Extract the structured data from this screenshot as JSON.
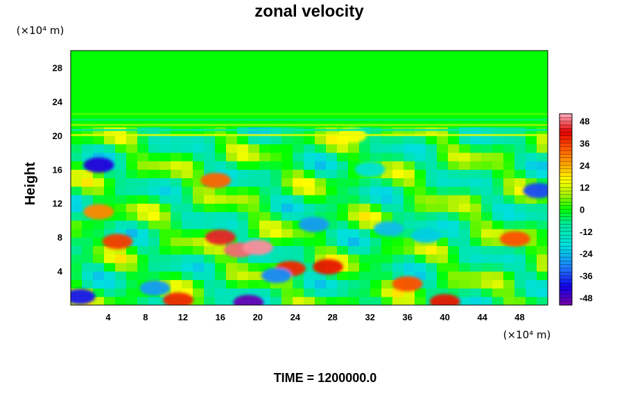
{
  "chart_data": {
    "type": "heatmap",
    "title": "zonal velocity",
    "ylabel": "Height",
    "x_unit": "(×10⁴ m)",
    "y_unit": "(×10⁴ m)",
    "x_ticks": [
      4,
      8,
      12,
      16,
      20,
      24,
      28,
      32,
      36,
      40,
      44,
      48
    ],
    "y_ticks": [
      4,
      8,
      12,
      16,
      20,
      24,
      28
    ],
    "xlim": [
      0,
      51
    ],
    "ylim": [
      0,
      30
    ],
    "colorbar": {
      "ticks": [
        48,
        36,
        24,
        12,
        0,
        -12,
        -24,
        -36,
        -48
      ],
      "range": [
        -52,
        52
      ],
      "colors": {
        "-52": "#7a00a8",
        "-42": "#1000e8",
        "-32": "#1e78ff",
        "-20": "#00dfe0",
        "-8": "#00e89c",
        "0": "#00ff00",
        "8": "#a8f000",
        "16": "#ffff00",
        "24": "#ffaa00",
        "34": "#ff5000",
        "42": "#e00000",
        "52": "#ffb0c0"
      }
    },
    "features": [
      {
        "x": 18.0,
        "y": 6.5,
        "value": 48
      },
      {
        "x": 20.0,
        "y": 6.8,
        "value": 50
      },
      {
        "x": 16.0,
        "y": 8.0,
        "value": 44
      },
      {
        "x": 23.5,
        "y": 4.3,
        "value": 38
      },
      {
        "x": 27.5,
        "y": 4.5,
        "value": 40
      },
      {
        "x": 40.0,
        "y": 0.4,
        "value": 40
      },
      {
        "x": 36.0,
        "y": 2.5,
        "value": 34
      },
      {
        "x": 11.5,
        "y": 0.6,
        "value": 38
      },
      {
        "x": 5.0,
        "y": 7.5,
        "value": 36
      },
      {
        "x": 3.0,
        "y": 11.0,
        "value": 28
      },
      {
        "x": 15.5,
        "y": 14.7,
        "value": 32
      },
      {
        "x": 47.5,
        "y": 7.8,
        "value": 34
      },
      {
        "x": 3.0,
        "y": 16.5,
        "value": -44
      },
      {
        "x": 19.0,
        "y": 0.3,
        "value": -50
      },
      {
        "x": 1.0,
        "y": 1.0,
        "value": -40
      },
      {
        "x": 9.0,
        "y": 2.0,
        "value": -28
      },
      {
        "x": 26.0,
        "y": 9.5,
        "value": -28
      },
      {
        "x": 34.0,
        "y": 9.0,
        "value": -24
      },
      {
        "x": 38.0,
        "y": 8.2,
        "value": -22
      },
      {
        "x": 50.0,
        "y": 13.5,
        "value": -36
      },
      {
        "x": 32.0,
        "y": 16.0,
        "value": -18
      },
      {
        "x": 22.0,
        "y": 3.5,
        "value": -30
      },
      {
        "x": 30.0,
        "y": 20.0,
        "value": 16
      }
    ]
  },
  "footer": {
    "time_label": "TIME = 1200000.0"
  }
}
